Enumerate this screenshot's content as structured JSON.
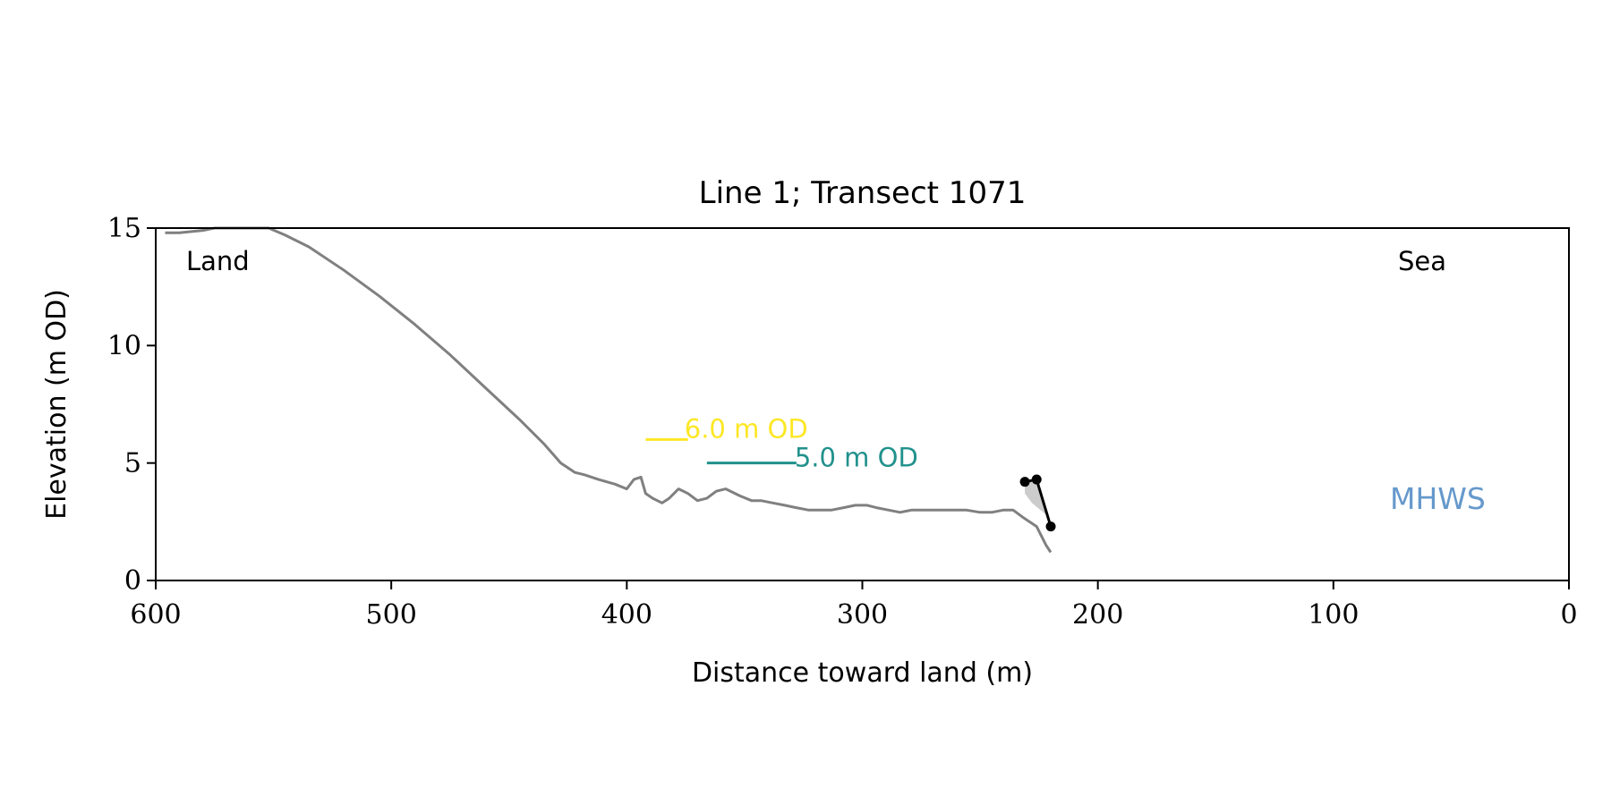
{
  "chart_data": {
    "type": "line",
    "title": "Line 1; Transect 1071",
    "xlabel": "Distance toward land (m)",
    "ylabel": "Elevation (m OD)",
    "xlim": [
      600,
      0
    ],
    "ylim": [
      0,
      15
    ],
    "x_ticks": [
      600,
      500,
      400,
      300,
      200,
      100,
      0
    ],
    "y_ticks": [
      0,
      5,
      10,
      15
    ],
    "x_tick_labels": [
      "600",
      "500",
      "400",
      "300",
      "200",
      "100",
      "0"
    ],
    "y_tick_labels": [
      "0",
      "5",
      "10",
      "15"
    ],
    "grid": false,
    "annotations": {
      "land": "Land",
      "sea": "Sea",
      "mhws": "MHWS",
      "contour_6": "6.0 m OD",
      "contour_5": "5.0 m OD"
    },
    "colors": {
      "profile": "#808080",
      "contour_6": "#fde725",
      "contour_5": "#21918c",
      "mhws": "#6699cc",
      "cliff": "#000000",
      "fill": "#cccccc"
    },
    "series": [
      {
        "key": "profile",
        "x": [
          596,
          590,
          580,
          575,
          570,
          560,
          552,
          545,
          535,
          520,
          505,
          490,
          475,
          460,
          445,
          435,
          428,
          422,
          418,
          412,
          405,
          400,
          397,
          394,
          392,
          389,
          385,
          382,
          378,
          374,
          370,
          366,
          362,
          358,
          352,
          347,
          343,
          338,
          333,
          328,
          323,
          318,
          313,
          308,
          303,
          298,
          294,
          289,
          284,
          279,
          274,
          268,
          262,
          256,
          250,
          245,
          240,
          236,
          232,
          226,
          222,
          220
        ],
        "y": [
          14.8,
          14.8,
          14.9,
          15.0,
          15.0,
          15.0,
          15.0,
          14.7,
          14.2,
          13.2,
          12.1,
          10.9,
          9.6,
          8.2,
          6.8,
          5.8,
          5.0,
          4.6,
          4.5,
          4.3,
          4.1,
          3.9,
          4.3,
          4.4,
          3.7,
          3.5,
          3.3,
          3.5,
          3.9,
          3.7,
          3.4,
          3.5,
          3.8,
          3.9,
          3.6,
          3.4,
          3.4,
          3.3,
          3.2,
          3.1,
          3.0,
          3.0,
          3.0,
          3.1,
          3.2,
          3.2,
          3.1,
          3.0,
          2.9,
          3.0,
          3.0,
          3.0,
          3.0,
          3.0,
          2.9,
          2.9,
          3.0,
          3.0,
          2.7,
          2.3,
          1.5,
          1.2
        ]
      }
    ],
    "contours": [
      {
        "key": "contour_6",
        "elevation": 6.0,
        "x_start": 392,
        "x_end": 374
      },
      {
        "key": "contour_5",
        "elevation": 5.0,
        "x_start": 366,
        "x_end": 328
      }
    ],
    "cliff_points": {
      "x": [
        231,
        226,
        220
      ],
      "y": [
        4.2,
        4.3,
        2.3
      ]
    }
  }
}
